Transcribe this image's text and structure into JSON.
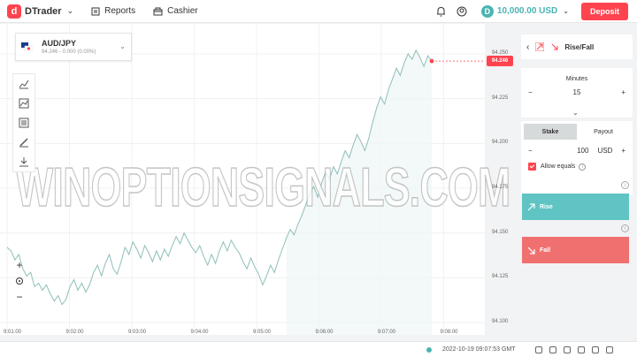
{
  "header": {
    "app_name": "DTrader",
    "reports_label": "Reports",
    "cashier_label": "Cashier",
    "balance": "10,000.00 USD",
    "deposit_label": "Deposit",
    "brand_color": "#ff444f",
    "balance_color": "#4bb4b3"
  },
  "asset": {
    "name": "AUD/JPY",
    "quote": "94.246 - 0.000 (0.00%)"
  },
  "chart": {
    "current_price_label": "94.246",
    "y_ticks": [
      "94.250",
      "94.225",
      "94.200",
      "94.175",
      "94.150",
      "94.125",
      "94.100"
    ],
    "x_ticks": [
      "9:01:00",
      "9:02:00",
      "9:03:00",
      "9:04:00",
      "9:05:00",
      "9:06:00",
      "9:07:00",
      "9:08:00"
    ],
    "watermark": "WINOPTIONSIGNALS.COM",
    "line_color": "#8dbfb9",
    "series": [
      94.142,
      94.14,
      94.135,
      94.138,
      94.13,
      94.126,
      94.128,
      94.12,
      94.122,
      94.118,
      94.121,
      94.116,
      94.112,
      94.115,
      94.11,
      94.113,
      94.12,
      94.124,
      94.118,
      94.122,
      94.117,
      94.121,
      94.128,
      94.132,
      94.126,
      94.133,
      94.138,
      94.13,
      94.127,
      94.134,
      94.142,
      94.138,
      94.145,
      94.141,
      94.136,
      94.143,
      94.139,
      94.134,
      94.14,
      94.135,
      94.141,
      94.137,
      94.143,
      94.148,
      94.144,
      94.15,
      94.146,
      94.142,
      94.139,
      94.143,
      94.137,
      94.132,
      94.138,
      94.133,
      94.14,
      94.145,
      94.14,
      94.146,
      94.142,
      94.139,
      94.134,
      94.13,
      94.136,
      94.131,
      94.127,
      94.121,
      94.126,
      94.132,
      94.128,
      94.135,
      94.141,
      94.147,
      94.152,
      94.149,
      94.155,
      94.16,
      94.166,
      94.172,
      94.176,
      94.17,
      94.178,
      94.184,
      94.18,
      94.187,
      94.183,
      94.19,
      94.196,
      94.192,
      94.199,
      94.205,
      94.201,
      94.196,
      94.203,
      94.212,
      94.22,
      94.226,
      94.222,
      94.23,
      94.236,
      94.242,
      94.238,
      94.245,
      94.25,
      94.247,
      94.252,
      94.248,
      94.243,
      94.249,
      94.246
    ]
  },
  "panel": {
    "trade_type": "Rise/Fall",
    "duration_unit": "Minutes",
    "duration_value": "15",
    "stake_tab": "Stake",
    "payout_tab": "Payout",
    "stake_amount": "100",
    "currency": "USD",
    "allow_equals": "Allow equals",
    "rise_label": "Rise",
    "fall_label": "Fall",
    "minus": "−",
    "plus": "+"
  },
  "footer": {
    "server_time": "2022-10-19 09:07:53 GMT"
  },
  "zoom": {
    "in": "+",
    "out": "−"
  }
}
